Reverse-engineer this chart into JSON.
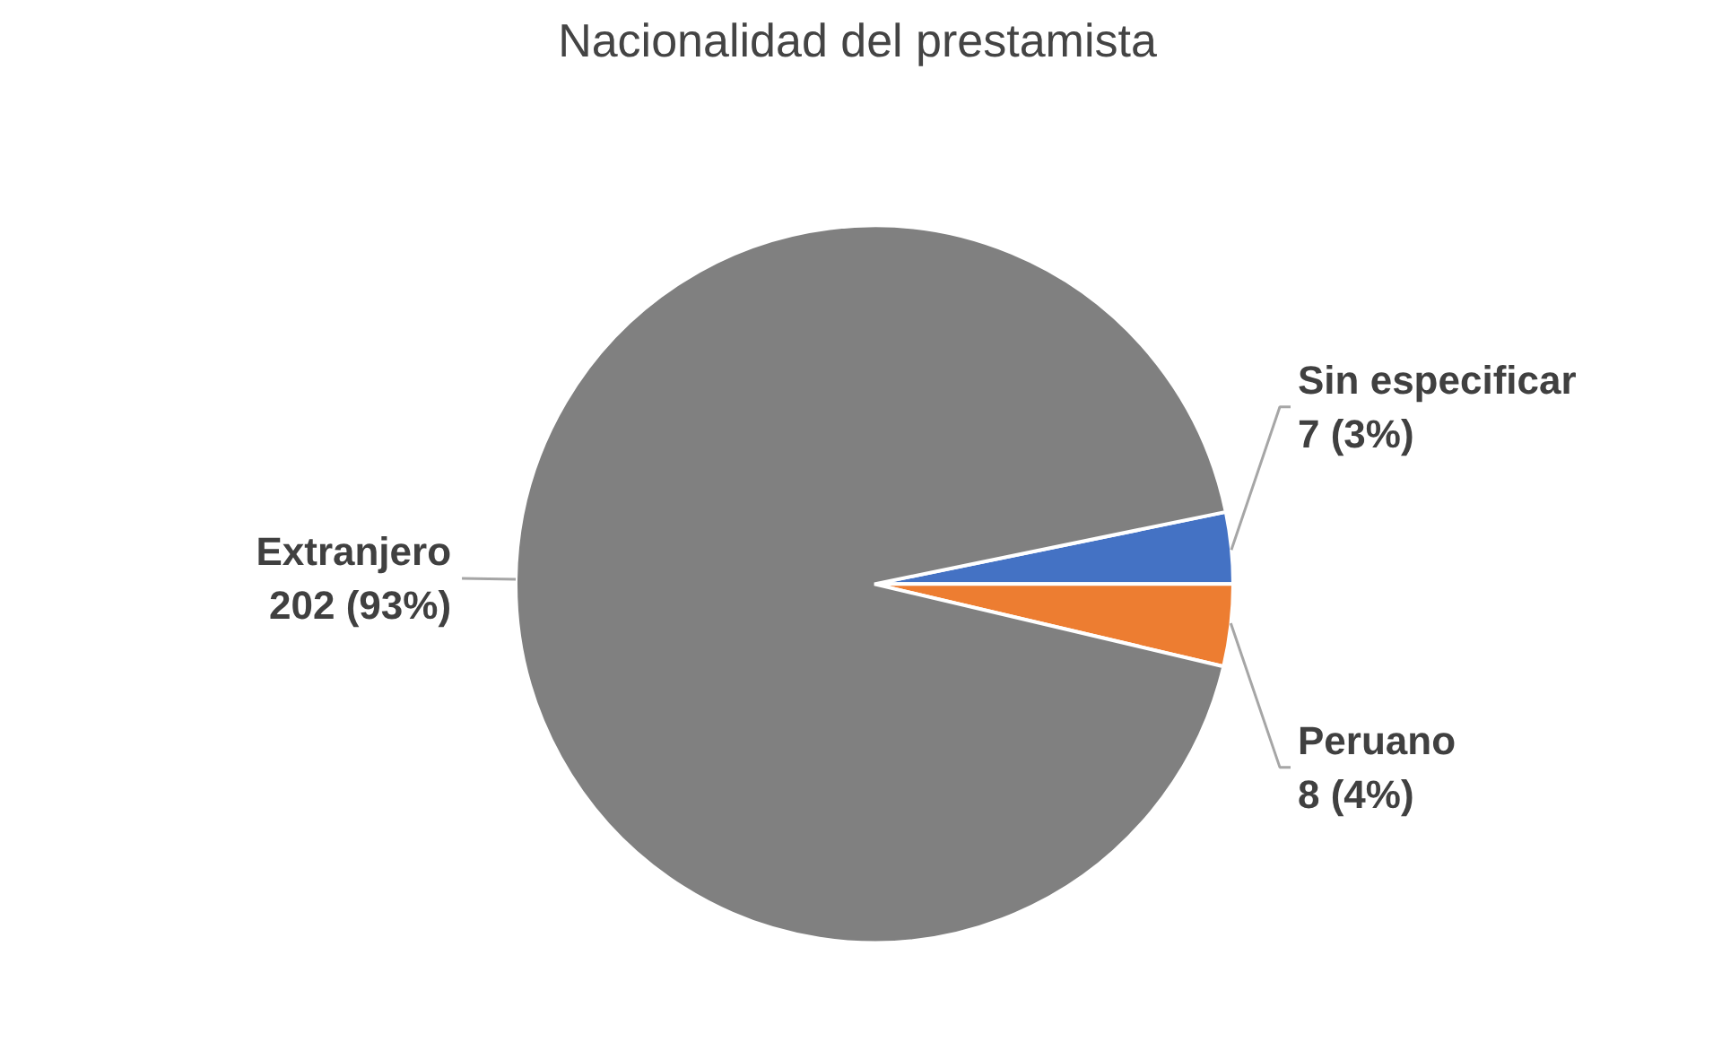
{
  "chart_data": {
    "type": "pie",
    "title": "Nacionalidad del prestamista",
    "categories": [
      "Sin especificar",
      "Peruano",
      "Extranjero"
    ],
    "values": [
      7,
      8,
      202
    ],
    "colors": [
      "#4472c4",
      "#ed7d31",
      "#808080"
    ],
    "value_labels": [
      "7 (3%)",
      "8 (4%)",
      "202 (93%)"
    ],
    "legend": false
  }
}
